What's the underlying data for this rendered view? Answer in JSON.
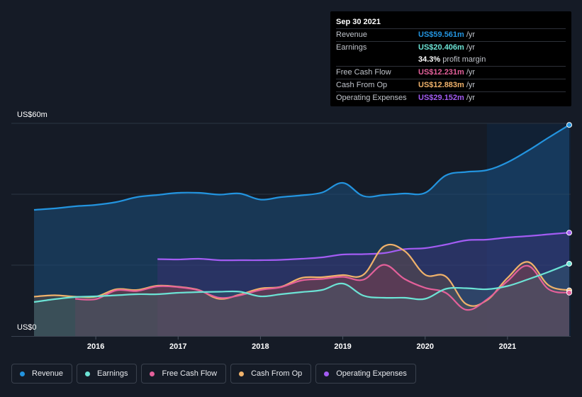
{
  "tooltip": {
    "date": "Sep 30 2021",
    "rows": [
      {
        "label": "Revenue",
        "value": "US$59.561m",
        "suffix": "/yr",
        "color": "#2394df"
      },
      {
        "label": "Earnings",
        "value": "US$20.406m",
        "suffix": "/yr",
        "color": "#6ce3d5"
      },
      {
        "label": "",
        "value": "34.3%",
        "suffix": "profit margin",
        "color": "#ffffff"
      },
      {
        "label": "Free Cash Flow",
        "value": "US$12.231m",
        "suffix": "/yr",
        "color": "#e4609a"
      },
      {
        "label": "Cash From Op",
        "value": "US$12.883m",
        "suffix": "/yr",
        "color": "#f0b26b"
      },
      {
        "label": "Operating Expenses",
        "value": "US$29.152m",
        "suffix": "/yr",
        "color": "#a35cf3"
      }
    ]
  },
  "legend": [
    {
      "label": "Revenue",
      "color": "#2394df"
    },
    {
      "label": "Earnings",
      "color": "#6ce3d5"
    },
    {
      "label": "Free Cash Flow",
      "color": "#e4609a"
    },
    {
      "label": "Cash From Op",
      "color": "#f0b26b"
    },
    {
      "label": "Operating Expenses",
      "color": "#a35cf3"
    }
  ],
  "chart_data": {
    "type": "area",
    "title": "",
    "xlabel": "",
    "ylabel": "",
    "y_top_label": "US$60m",
    "y_bottom_label": "US$0",
    "ylim": [
      0,
      60
    ],
    "xlim": [
      2015.25,
      2021.75
    ],
    "x_ticks": [
      2016,
      2017,
      2018,
      2019,
      2020,
      2021
    ],
    "x_tick_labels": [
      "2016",
      "2017",
      "2018",
      "2019",
      "2020",
      "2021"
    ],
    "grid": true,
    "highlight_from": 2020.75,
    "series": [
      {
        "name": "Revenue",
        "color": "#2394df",
        "points": [
          [
            2015.25,
            35.6
          ],
          [
            2015.5,
            36.0
          ],
          [
            2015.75,
            36.6
          ],
          [
            2016.0,
            37.0
          ],
          [
            2016.25,
            37.8
          ],
          [
            2016.5,
            39.2
          ],
          [
            2016.75,
            39.8
          ],
          [
            2017.0,
            40.4
          ],
          [
            2017.25,
            40.4
          ],
          [
            2017.5,
            39.9
          ],
          [
            2017.75,
            40.2
          ],
          [
            2018.0,
            38.5
          ],
          [
            2018.25,
            39.2
          ],
          [
            2018.5,
            39.7
          ],
          [
            2018.75,
            40.5
          ],
          [
            2019.0,
            43.2
          ],
          [
            2019.25,
            39.5
          ],
          [
            2019.5,
            39.8
          ],
          [
            2019.75,
            40.2
          ],
          [
            2020.0,
            40.4
          ],
          [
            2020.25,
            45.3
          ],
          [
            2020.5,
            46.3
          ],
          [
            2020.75,
            46.8
          ],
          [
            2021.0,
            49.0
          ],
          [
            2021.25,
            52.3
          ],
          [
            2021.5,
            56.0
          ],
          [
            2021.75,
            59.561
          ]
        ]
      },
      {
        "name": "Earnings",
        "color": "#6ce3d5",
        "points": [
          [
            2015.25,
            9.6
          ],
          [
            2015.5,
            10.4
          ],
          [
            2015.75,
            11.0
          ],
          [
            2016.0,
            11.2
          ],
          [
            2016.25,
            11.5
          ],
          [
            2016.5,
            11.8
          ],
          [
            2016.75,
            11.8
          ],
          [
            2017.0,
            12.2
          ],
          [
            2017.25,
            12.4
          ],
          [
            2017.5,
            12.5
          ],
          [
            2017.75,
            12.5
          ],
          [
            2018.0,
            11.2
          ],
          [
            2018.25,
            11.8
          ],
          [
            2018.5,
            12.4
          ],
          [
            2018.75,
            13.0
          ],
          [
            2019.0,
            14.8
          ],
          [
            2019.25,
            11.4
          ],
          [
            2019.5,
            10.8
          ],
          [
            2019.75,
            10.8
          ],
          [
            2020.0,
            10.5
          ],
          [
            2020.25,
            13.3
          ],
          [
            2020.5,
            13.5
          ],
          [
            2020.75,
            13.2
          ],
          [
            2021.0,
            14.1
          ],
          [
            2021.25,
            16.0
          ],
          [
            2021.5,
            18.1
          ],
          [
            2021.75,
            20.406
          ]
        ]
      },
      {
        "name": "Free Cash Flow",
        "color": "#e4609a",
        "points": [
          [
            2015.75,
            10.5
          ],
          [
            2016.0,
            10.4
          ],
          [
            2016.25,
            12.9
          ],
          [
            2016.5,
            12.7
          ],
          [
            2016.75,
            14.0
          ],
          [
            2017.0,
            13.8
          ],
          [
            2017.25,
            12.9
          ],
          [
            2017.5,
            10.8
          ],
          [
            2017.75,
            11.5
          ],
          [
            2018.0,
            13.0
          ],
          [
            2018.25,
            13.8
          ],
          [
            2018.5,
            15.7
          ],
          [
            2018.75,
            16.1
          ],
          [
            2019.0,
            16.7
          ],
          [
            2019.25,
            15.9
          ],
          [
            2019.5,
            20.1
          ],
          [
            2019.75,
            16.1
          ],
          [
            2020.0,
            13.6
          ],
          [
            2020.25,
            12.2
          ],
          [
            2020.5,
            7.4
          ],
          [
            2020.75,
            10.3
          ],
          [
            2021.0,
            15.5
          ],
          [
            2021.25,
            19.8
          ],
          [
            2021.5,
            13.2
          ],
          [
            2021.75,
            12.231
          ]
        ]
      },
      {
        "name": "Cash From Op",
        "color": "#f0b26b",
        "points": [
          [
            2015.25,
            11.1
          ],
          [
            2015.5,
            11.5
          ],
          [
            2015.75,
            11.1
          ],
          [
            2016.0,
            11.1
          ],
          [
            2016.25,
            13.2
          ],
          [
            2016.5,
            13.0
          ],
          [
            2016.75,
            14.2
          ],
          [
            2017.0,
            13.9
          ],
          [
            2017.25,
            13.0
          ],
          [
            2017.5,
            10.5
          ],
          [
            2017.75,
            11.7
          ],
          [
            2018.0,
            13.4
          ],
          [
            2018.25,
            13.9
          ],
          [
            2018.5,
            16.4
          ],
          [
            2018.75,
            16.6
          ],
          [
            2019.0,
            17.2
          ],
          [
            2019.25,
            17.3
          ],
          [
            2019.5,
            25.3
          ],
          [
            2019.75,
            24.0
          ],
          [
            2020.0,
            17.3
          ],
          [
            2020.25,
            16.8
          ],
          [
            2020.5,
            9.0
          ],
          [
            2020.75,
            10.1
          ],
          [
            2021.0,
            16.4
          ],
          [
            2021.25,
            20.9
          ],
          [
            2021.5,
            14.3
          ],
          [
            2021.75,
            12.883
          ]
        ]
      },
      {
        "name": "Operating Expenses",
        "color": "#a35cf3",
        "points": [
          [
            2016.75,
            21.7
          ],
          [
            2017.0,
            21.6
          ],
          [
            2017.25,
            21.8
          ],
          [
            2017.5,
            21.4
          ],
          [
            2017.75,
            21.4
          ],
          [
            2018.0,
            21.4
          ],
          [
            2018.25,
            21.5
          ],
          [
            2018.5,
            21.8
          ],
          [
            2018.75,
            22.2
          ],
          [
            2019.0,
            23.0
          ],
          [
            2019.25,
            23.1
          ],
          [
            2019.5,
            23.4
          ],
          [
            2019.75,
            24.5
          ],
          [
            2020.0,
            24.8
          ],
          [
            2020.25,
            25.8
          ],
          [
            2020.5,
            27.0
          ],
          [
            2020.75,
            27.2
          ],
          [
            2021.0,
            27.8
          ],
          [
            2021.25,
            28.2
          ],
          [
            2021.5,
            28.7
          ],
          [
            2021.75,
            29.152
          ]
        ]
      }
    ]
  }
}
